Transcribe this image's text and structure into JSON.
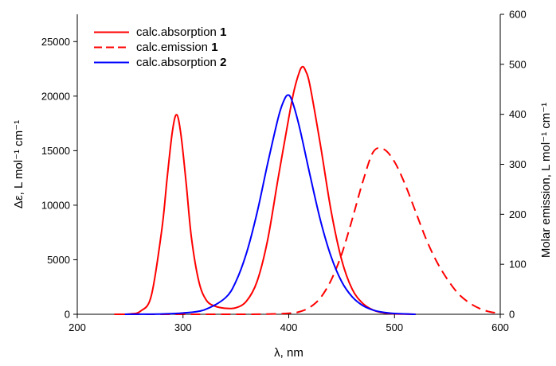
{
  "chart_data": {
    "type": "line",
    "xlabel": "λ, nm",
    "ylabel_left": "Δε, L mol⁻¹ cm⁻¹",
    "ylabel_right": "Molar emission, L mol⁻¹ cm⁻¹",
    "xlim": [
      200,
      600
    ],
    "ylim_left": [
      0,
      27500
    ],
    "ylim_right": [
      0,
      600
    ],
    "x_ticks": [
      200,
      300,
      400,
      500,
      600
    ],
    "y_left_ticks": [
      0,
      5000,
      10000,
      15000,
      20000,
      25000
    ],
    "y_right_ticks": [
      0,
      100,
      200,
      300,
      400,
      500,
      600
    ],
    "legend_position": "top-left",
    "series": [
      {
        "name": "calc.absorption",
        "name_bold": "1",
        "color": "#ff0000",
        "dash": "solid",
        "axis": "left",
        "x": [
          235,
          250,
          260,
          270,
          280,
          285,
          290,
          294,
          298,
          303,
          308,
          315,
          322,
          330,
          340,
          350,
          360,
          370,
          380,
          390,
          400,
          405,
          410,
          413,
          416,
          420,
          430,
          440,
          450,
          460,
          470,
          480,
          490,
          500,
          520
        ],
        "y": [
          0,
          30,
          300,
          1700,
          7800,
          12500,
          16800,
          18300,
          16500,
          12000,
          7000,
          3000,
          1300,
          750,
          550,
          600,
          1200,
          3000,
          6800,
          12500,
          18000,
          20500,
          22200,
          22700,
          22300,
          21000,
          15500,
          9500,
          5000,
          2300,
          1000,
          380,
          130,
          40,
          0
        ]
      },
      {
        "name": "calc.emission",
        "name_bold": "1",
        "color": "#ff0000",
        "dash": "dashed",
        "axis": "right",
        "x": [
          250,
          350,
          380,
          400,
          410,
          420,
          430,
          440,
          450,
          460,
          470,
          480,
          490,
          500,
          510,
          520,
          530,
          540,
          550,
          560,
          570,
          580,
          590,
          600
        ],
        "y": [
          0,
          0,
          0.5,
          2,
          5,
          14,
          33,
          68,
          120,
          190,
          265,
          325,
          330,
          305,
          260,
          205,
          150,
          105,
          70,
          42,
          24,
          12,
          5,
          2
        ]
      },
      {
        "name": "calc.absorption",
        "name_bold": "2",
        "color": "#0000ff",
        "dash": "solid",
        "axis": "left",
        "x": [
          245,
          260,
          280,
          300,
          320,
          340,
          350,
          360,
          370,
          380,
          390,
          395,
          399,
          403,
          410,
          420,
          430,
          440,
          450,
          460,
          470,
          480,
          490,
          500,
          520
        ],
        "y": [
          0,
          10,
          30,
          120,
          400,
          1500,
          3000,
          5600,
          9300,
          13800,
          18000,
          19500,
          20100,
          19600,
          17200,
          12800,
          8600,
          5300,
          3000,
          1600,
          800,
          380,
          170,
          70,
          0
        ]
      }
    ]
  }
}
